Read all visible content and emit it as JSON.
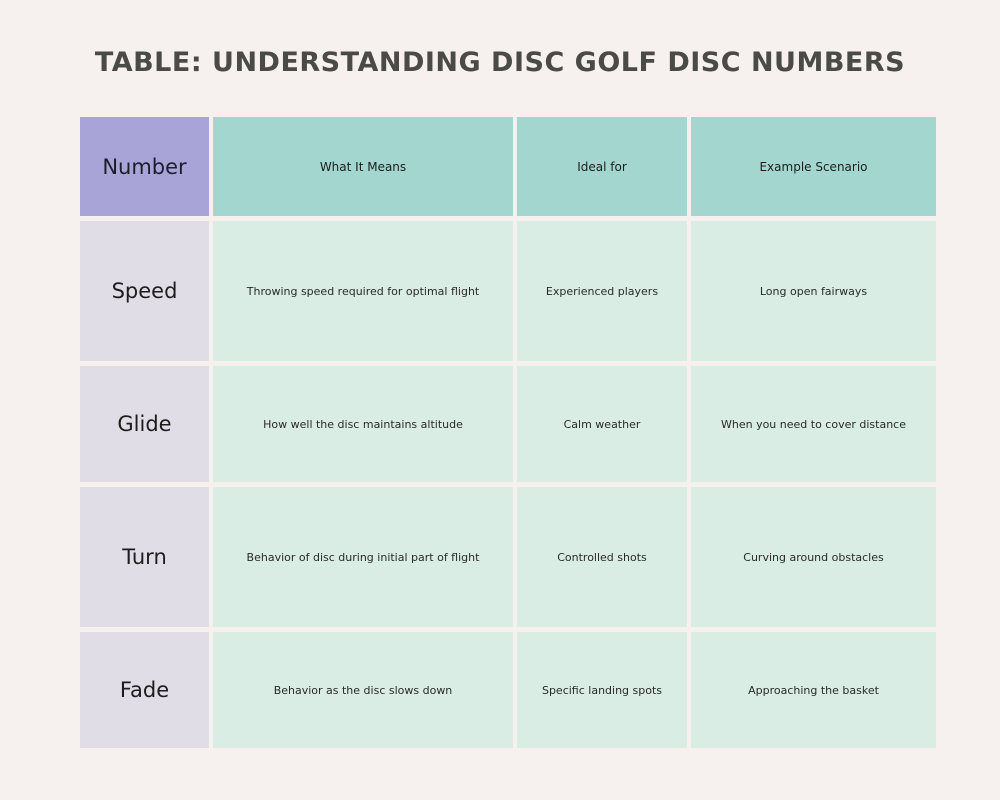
{
  "title": "TABLE: UNDERSTANDING DISC GOLF DISC NUMBERS",
  "table": {
    "corner_label": "Number",
    "columns": [
      "What It Means",
      "Ideal for",
      "Example Scenario"
    ],
    "rows": [
      {
        "label": "Speed",
        "cells": [
          "Throwing speed required for optimal flight",
          "Experienced players",
          "Long open fairways"
        ]
      },
      {
        "label": "Glide",
        "cells": [
          "How well the disc maintains altitude",
          "Calm weather",
          "When you need to cover distance"
        ]
      },
      {
        "label": "Turn",
        "cells": [
          "Behavior of disc during initial part of flight",
          "Controlled shots",
          "Curving around obstacles"
        ]
      },
      {
        "label": "Fade",
        "cells": [
          "Behavior as the disc slows down",
          "Specific landing spots",
          "Approaching the basket"
        ]
      }
    ]
  },
  "colors": {
    "background": "#f6f1ee",
    "title": "#4a4a46",
    "corner": "#a9a4d7",
    "column_header": "#a3d6cf",
    "row_header": "#e0dde6",
    "body": "#d9ede4"
  }
}
